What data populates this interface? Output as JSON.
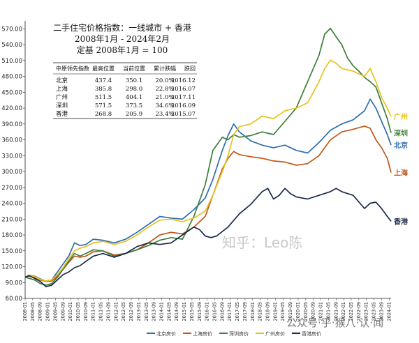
{
  "chart_data": {
    "type": "line",
    "title_lines": [
      "二手住宅价格指数：一线城市 + 香港",
      "2008年1月 - 2024年2月",
      "定基 2008年1月 = 100"
    ],
    "y_ticks": [
      "60.00",
      "90.00",
      "120.00",
      "150.00",
      "180.00",
      "210.00",
      "240.00",
      "270.00",
      "300.00",
      "330.00",
      "360.00",
      "390.00",
      "420.00",
      "450.00",
      "480.00",
      "510.00",
      "540.00",
      "570.00"
    ],
    "ylim": [
      60,
      585
    ],
    "x_start": "2008-01",
    "x_end": "2024-02",
    "x_ticks": [
      "2008-01",
      "2008-05",
      "2008-09",
      "2009-01",
      "2009-05",
      "2009-09",
      "2010-01",
      "2010-05",
      "2010-09",
      "2011-01",
      "2011-05",
      "2011-09",
      "2012-01",
      "2012-05",
      "2012-09",
      "2013-01",
      "2013-05",
      "2013-09",
      "2014-01",
      "2014-05",
      "2014-09",
      "2015-01",
      "2015-05",
      "2015-09",
      "2016-01",
      "2016-05",
      "2016-09",
      "2017-01",
      "2017-05",
      "2017-09",
      "2018-01",
      "2018-05",
      "2018-09",
      "2019-01",
      "2019-05",
      "2019-09",
      "2020-01",
      "2020-05",
      "2020-09",
      "2021-01",
      "2021-05",
      "2021-09",
      "2022-01",
      "2022-05",
      "2022-09",
      "2023-01",
      "2023-05",
      "2023-09",
      "2024-01"
    ],
    "table": {
      "headers": [
        "中原领先指数",
        "最高位置",
        "当前位置",
        "累计跌幅",
        "跌回"
      ],
      "rows": [
        [
          "北京",
          "437.4",
          "350.1",
          "20.0%",
          "2016.12"
        ],
        [
          "上海",
          "385.8",
          "298.0",
          "22.8%",
          "2016.07"
        ],
        [
          "广州",
          "511.5",
          "404.1",
          "21.0%",
          "2017.11"
        ],
        [
          "深圳",
          "571.5",
          "373.5",
          "34.6%",
          "2016.09"
        ],
        [
          "香港",
          "268.8",
          "205.9",
          "23.4%",
          "2015.07"
        ]
      ]
    },
    "series": [
      {
        "name": "北京房价",
        "end_label": "北京",
        "color": "#2f6db0",
        "points": [
          [
            "2008-01",
            100
          ],
          [
            "2008-03",
            104
          ],
          [
            "2008-06",
            102
          ],
          [
            "2008-09",
            97
          ],
          [
            "2008-12",
            92
          ],
          [
            "2009-03",
            95
          ],
          [
            "2009-06",
            110
          ],
          [
            "2009-09",
            125
          ],
          [
            "2009-12",
            140
          ],
          [
            "2010-03",
            165
          ],
          [
            "2010-06",
            160
          ],
          [
            "2010-09",
            162
          ],
          [
            "2011-01",
            172
          ],
          [
            "2011-06",
            170
          ],
          [
            "2011-12",
            165
          ],
          [
            "2012-06",
            172
          ],
          [
            "2012-12",
            185
          ],
          [
            "2013-06",
            200
          ],
          [
            "2013-12",
            215
          ],
          [
            "2014-06",
            212
          ],
          [
            "2014-12",
            210
          ],
          [
            "2015-06",
            228
          ],
          [
            "2015-12",
            250
          ],
          [
            "2016-04",
            285
          ],
          [
            "2016-09",
            340
          ],
          [
            "2016-12",
            368
          ],
          [
            "2017-03",
            390
          ],
          [
            "2017-06",
            375
          ],
          [
            "2017-12",
            358
          ],
          [
            "2018-06",
            350
          ],
          [
            "2018-12",
            345
          ],
          [
            "2019-06",
            350
          ],
          [
            "2019-12",
            340
          ],
          [
            "2020-06",
            335
          ],
          [
            "2020-12",
            355
          ],
          [
            "2021-06",
            378
          ],
          [
            "2021-12",
            390
          ],
          [
            "2022-06",
            398
          ],
          [
            "2022-12",
            415
          ],
          [
            "2023-03",
            437
          ],
          [
            "2023-06",
            420
          ],
          [
            "2023-09",
            395
          ],
          [
            "2023-12",
            370
          ],
          [
            "2024-02",
            350
          ]
        ]
      },
      {
        "name": "上海房价",
        "end_label": "上海",
        "color": "#c2571a",
        "points": [
          [
            "2008-01",
            100
          ],
          [
            "2008-03",
            102
          ],
          [
            "2008-06",
            100
          ],
          [
            "2008-09",
            95
          ],
          [
            "2008-12",
            92
          ],
          [
            "2009-03",
            93
          ],
          [
            "2009-06",
            102
          ],
          [
            "2009-09",
            115
          ],
          [
            "2009-12",
            128
          ],
          [
            "2010-03",
            140
          ],
          [
            "2010-06",
            138
          ],
          [
            "2010-09",
            140
          ],
          [
            "2011-01",
            148
          ],
          [
            "2011-06",
            150
          ],
          [
            "2011-12",
            142
          ],
          [
            "2012-06",
            145
          ],
          [
            "2012-12",
            152
          ],
          [
            "2013-06",
            165
          ],
          [
            "2013-12",
            180
          ],
          [
            "2014-06",
            185
          ],
          [
            "2014-12",
            182
          ],
          [
            "2015-06",
            195
          ],
          [
            "2015-12",
            215
          ],
          [
            "2016-04",
            255
          ],
          [
            "2016-09",
            305
          ],
          [
            "2016-12",
            325
          ],
          [
            "2017-03",
            338
          ],
          [
            "2017-06",
            332
          ],
          [
            "2017-12",
            328
          ],
          [
            "2018-06",
            325
          ],
          [
            "2018-12",
            320
          ],
          [
            "2019-06",
            318
          ],
          [
            "2019-12",
            312
          ],
          [
            "2020-06",
            315
          ],
          [
            "2020-12",
            330
          ],
          [
            "2021-06",
            360
          ],
          [
            "2021-12",
            375
          ],
          [
            "2022-06",
            380
          ],
          [
            "2022-12",
            386
          ],
          [
            "2023-03",
            382
          ],
          [
            "2023-06",
            360
          ],
          [
            "2023-09",
            345
          ],
          [
            "2023-12",
            325
          ],
          [
            "2024-02",
            298
          ]
        ]
      },
      {
        "name": "深圳房价",
        "end_label": "深圳",
        "color": "#3e7d3a",
        "points": [
          [
            "2008-01",
            100
          ],
          [
            "2008-03",
            98
          ],
          [
            "2008-06",
            95
          ],
          [
            "2008-09",
            88
          ],
          [
            "2008-12",
            85
          ],
          [
            "2009-03",
            88
          ],
          [
            "2009-06",
            100
          ],
          [
            "2009-09",
            115
          ],
          [
            "2009-12",
            130
          ],
          [
            "2010-03",
            145
          ],
          [
            "2010-06",
            140
          ],
          [
            "2010-09",
            145
          ],
          [
            "2011-01",
            152
          ],
          [
            "2011-06",
            150
          ],
          [
            "2011-12",
            140
          ],
          [
            "2012-06",
            145
          ],
          [
            "2012-12",
            152
          ],
          [
            "2013-06",
            160
          ],
          [
            "2013-12",
            170
          ],
          [
            "2014-06",
            175
          ],
          [
            "2014-12",
            172
          ],
          [
            "2015-06",
            215
          ],
          [
            "2015-12",
            275
          ],
          [
            "2016-04",
            340
          ],
          [
            "2016-09",
            365
          ],
          [
            "2016-12",
            360
          ],
          [
            "2017-03",
            370
          ],
          [
            "2017-06",
            365
          ],
          [
            "2017-12",
            368
          ],
          [
            "2018-06",
            375
          ],
          [
            "2018-12",
            370
          ],
          [
            "2019-06",
            395
          ],
          [
            "2019-12",
            420
          ],
          [
            "2020-06",
            470
          ],
          [
            "2020-12",
            520
          ],
          [
            "2021-03",
            560
          ],
          [
            "2021-06",
            571
          ],
          [
            "2021-09",
            555
          ],
          [
            "2021-12",
            540
          ],
          [
            "2022-03",
            515
          ],
          [
            "2022-06",
            500
          ],
          [
            "2022-09",
            490
          ],
          [
            "2022-12",
            478
          ],
          [
            "2023-03",
            470
          ],
          [
            "2023-06",
            460
          ],
          [
            "2023-09",
            430
          ],
          [
            "2023-12",
            400
          ],
          [
            "2024-02",
            373
          ]
        ]
      },
      {
        "name": "广州房价",
        "end_label": "广州",
        "color": "#e8c21c",
        "points": [
          [
            "2008-01",
            100
          ],
          [
            "2008-03",
            104
          ],
          [
            "2008-06",
            101
          ],
          [
            "2008-09",
            96
          ],
          [
            "2008-12",
            93
          ],
          [
            "2009-03",
            95
          ],
          [
            "2009-06",
            105
          ],
          [
            "2009-09",
            118
          ],
          [
            "2009-12",
            135
          ],
          [
            "2010-03",
            150
          ],
          [
            "2010-06",
            155
          ],
          [
            "2010-09",
            158
          ],
          [
            "2011-01",
            165
          ],
          [
            "2011-06",
            168
          ],
          [
            "2011-12",
            162
          ],
          [
            "2012-06",
            168
          ],
          [
            "2012-12",
            180
          ],
          [
            "2013-06",
            195
          ],
          [
            "2013-12",
            208
          ],
          [
            "2014-06",
            210
          ],
          [
            "2014-12",
            205
          ],
          [
            "2015-06",
            212
          ],
          [
            "2015-12",
            225
          ],
          [
            "2016-04",
            255
          ],
          [
            "2016-09",
            300
          ],
          [
            "2016-12",
            330
          ],
          [
            "2017-03",
            370
          ],
          [
            "2017-06",
            385
          ],
          [
            "2017-12",
            390
          ],
          [
            "2018-06",
            405
          ],
          [
            "2018-12",
            400
          ],
          [
            "2019-06",
            415
          ],
          [
            "2019-12",
            420
          ],
          [
            "2020-06",
            430
          ],
          [
            "2020-12",
            470
          ],
          [
            "2021-03",
            495
          ],
          [
            "2021-06",
            511
          ],
          [
            "2021-09",
            505
          ],
          [
            "2021-12",
            495
          ],
          [
            "2022-06",
            490
          ],
          [
            "2022-12",
            480
          ],
          [
            "2023-03",
            495
          ],
          [
            "2023-06",
            470
          ],
          [
            "2023-09",
            440
          ],
          [
            "2023-12",
            420
          ],
          [
            "2024-02",
            404
          ]
        ]
      },
      {
        "name": "香港房价",
        "end_label": "香港",
        "color": "#1b2a4a",
        "points": [
          [
            "2008-01",
            100
          ],
          [
            "2008-03",
            103
          ],
          [
            "2008-06",
            98
          ],
          [
            "2008-09",
            92
          ],
          [
            "2008-12",
            82
          ],
          [
            "2009-03",
            85
          ],
          [
            "2009-06",
            95
          ],
          [
            "2009-09",
            105
          ],
          [
            "2009-12",
            110
          ],
          [
            "2010-03",
            118
          ],
          [
            "2010-06",
            122
          ],
          [
            "2010-09",
            130
          ],
          [
            "2011-01",
            140
          ],
          [
            "2011-06",
            145
          ],
          [
            "2011-12",
            138
          ],
          [
            "2012-06",
            145
          ],
          [
            "2012-12",
            158
          ],
          [
            "2013-06",
            165
          ],
          [
            "2013-12",
            162
          ],
          [
            "2014-06",
            165
          ],
          [
            "2014-12",
            180
          ],
          [
            "2015-06",
            195
          ],
          [
            "2015-09",
            190
          ],
          [
            "2015-12",
            178
          ],
          [
            "2016-03",
            175
          ],
          [
            "2016-06",
            178
          ],
          [
            "2016-12",
            195
          ],
          [
            "2017-06",
            220
          ],
          [
            "2017-12",
            238
          ],
          [
            "2018-06",
            262
          ],
          [
            "2018-09",
            268
          ],
          [
            "2018-12",
            248
          ],
          [
            "2019-03",
            255
          ],
          [
            "2019-06",
            268
          ],
          [
            "2019-09",
            258
          ],
          [
            "2019-12",
            252
          ],
          [
            "2020-06",
            248
          ],
          [
            "2020-12",
            255
          ],
          [
            "2021-06",
            262
          ],
          [
            "2021-09",
            268
          ],
          [
            "2021-12",
            262
          ],
          [
            "2022-06",
            255
          ],
          [
            "2022-12",
            230
          ],
          [
            "2023-03",
            240
          ],
          [
            "2023-06",
            242
          ],
          [
            "2023-09",
            230
          ],
          [
            "2023-12",
            215
          ],
          [
            "2024-02",
            206
          ]
        ]
      }
    ]
  },
  "legend_items": [
    "北京房价",
    "上海房价",
    "深圳房价",
    "广州房价",
    "香港房价"
  ],
  "watermark": "知乎：Leo陈",
  "footer_watermark": "公众号·乎·猴八·认·闻"
}
